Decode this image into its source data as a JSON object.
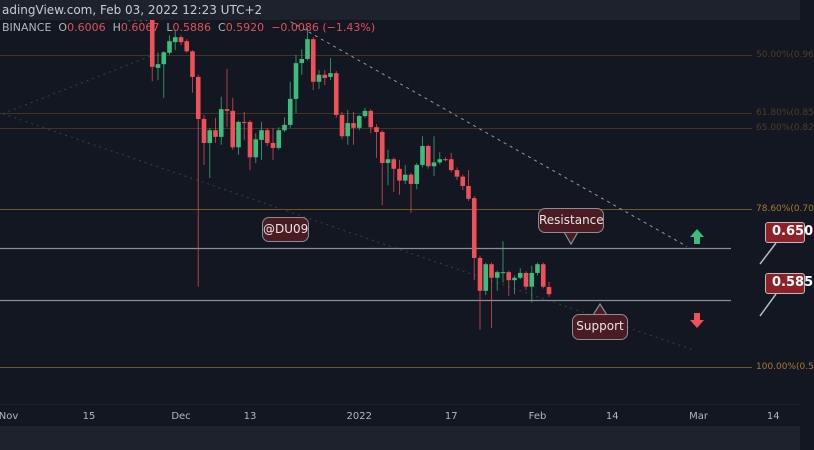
{
  "header": {
    "source_line": "adingView.com, Feb 03, 2022 12:23 UTC+2",
    "exchange": "BINANCE",
    "o_label": "O",
    "o_value": "0.6006",
    "h_label": "H",
    "h_value": "0.6067",
    "l_label": "L",
    "l_value": "0.5886",
    "c_label": "C",
    "c_value": "0.5920",
    "change": "−0.0086 (−1.43%)"
  },
  "annotations": {
    "watermark": "@DU09",
    "resistance_label": "Resistance",
    "support_label": "Support",
    "resistance_price": "0.650",
    "support_price": "0.585"
  },
  "colors": {
    "background": "#131722",
    "up": "#3dbd7d",
    "down": "#f0505a",
    "fib": "#7a5a24",
    "level": "#8a8d96",
    "label_fill": "#4a1c22",
    "price_box": "#8e2027"
  },
  "chart_data": {
    "type": "candlestick",
    "title": "",
    "y_scale": "log",
    "grid": false,
    "x_ticks": [
      {
        "label": "Nov",
        "date": "2021-11-01"
      },
      {
        "label": "15",
        "date": "2021-11-15"
      },
      {
        "label": "Dec",
        "date": "2021-12-01"
      },
      {
        "label": "13",
        "date": "2021-12-13"
      },
      {
        "label": "2022",
        "date": "2022-01-01"
      },
      {
        "label": "17",
        "date": "2022-01-17"
      },
      {
        "label": "Feb",
        "date": "2022-02-01"
      },
      {
        "label": "14",
        "date": "2022-02-14"
      },
      {
        "label": "Mar",
        "date": "2022-03-01"
      },
      {
        "label": "14",
        "date": "2022-03-14"
      }
    ],
    "fib_levels": [
      {
        "label": "50.00%(0.96",
        "price": 0.961,
        "strong": false
      },
      {
        "label": "61.80%(0.85",
        "price": 0.855,
        "strong": false
      },
      {
        "label": "65.00%(0.82",
        "price": 0.829,
        "strong": false
      },
      {
        "label": "78.60%(0.70",
        "price": 0.703,
        "strong": true
      },
      {
        "label": "100.00%(0.5",
        "price": 0.511,
        "strong": true
      }
    ],
    "horizontal_levels": [
      {
        "name": "resistance",
        "price": 0.65
      },
      {
        "name": "support",
        "price": 0.585
      }
    ],
    "trendlines": [
      {
        "from": [
          "2021-12-19",
          1.035
        ],
        "to": [
          "2022-02-27",
          0.652
        ],
        "style": "dashed"
      },
      {
        "from": [
          "2021-10-31",
          0.853
        ],
        "to": [
          "2021-11-26",
          0.96
        ],
        "style": "faint"
      },
      {
        "from": [
          "2021-10-31",
          0.853
        ],
        "to": [
          "2022-02-28",
          0.529
        ],
        "style": "faint"
      }
    ],
    "start_date": "2021-11-22",
    "candles_ohlc": [
      [
        1.031,
        1.04,
        1.028,
        1.035
      ],
      [
        1.035,
        1.04,
        1.029,
        1.031
      ],
      [
        1.031,
        1.038,
        1.028,
        1.035
      ],
      [
        1.035,
        1.04,
        1.029,
        1.031
      ],
      [
        1.035,
        1.04,
        0.911,
        0.938
      ],
      [
        0.936,
        0.965,
        0.913,
        0.943
      ],
      [
        0.943,
        0.968,
        0.881,
        0.966
      ],
      [
        0.965,
        1.0,
        0.961,
        0.988
      ],
      [
        0.986,
        1.011,
        0.97,
        0.996
      ],
      [
        0.996,
        1.0,
        0.98,
        0.986
      ],
      [
        0.988,
        0.992,
        0.965,
        0.968
      ],
      [
        0.968,
        0.97,
        0.89,
        0.919
      ],
      [
        0.919,
        0.923,
        0.601,
        0.844
      ],
      [
        0.844,
        0.851,
        0.769,
        0.804
      ],
      [
        0.804,
        0.829,
        0.749,
        0.825
      ],
      [
        0.825,
        0.846,
        0.804,
        0.814
      ],
      [
        0.814,
        0.883,
        0.801,
        0.861
      ],
      [
        0.861,
        0.934,
        0.83,
        0.858
      ],
      [
        0.858,
        0.881,
        0.793,
        0.797
      ],
      [
        0.797,
        0.841,
        0.785,
        0.839
      ],
      [
        0.839,
        0.856,
        0.809,
        0.838
      ],
      [
        0.839,
        0.842,
        0.761,
        0.781
      ],
      [
        0.781,
        0.82,
        0.772,
        0.81
      ],
      [
        0.809,
        0.839,
        0.777,
        0.825
      ],
      [
        0.825,
        0.829,
        0.799,
        0.804
      ],
      [
        0.804,
        0.829,
        0.777,
        0.796
      ],
      [
        0.796,
        0.83,
        0.793,
        0.825
      ],
      [
        0.825,
        0.847,
        0.822,
        0.834
      ],
      [
        0.834,
        0.91,
        0.829,
        0.879
      ],
      [
        0.879,
        0.961,
        0.854,
        0.945
      ],
      [
        0.945,
        0.972,
        0.923,
        0.953
      ],
      [
        0.953,
        1.015,
        0.95,
        0.992
      ],
      [
        0.992,
        0.996,
        0.895,
        0.91
      ],
      [
        0.91,
        0.932,
        0.897,
        0.923
      ],
      [
        0.923,
        0.932,
        0.904,
        0.917
      ],
      [
        0.919,
        0.955,
        0.913,
        0.926
      ],
      [
        0.926,
        0.93,
        0.846,
        0.851
      ],
      [
        0.851,
        0.856,
        0.81,
        0.815
      ],
      [
        0.815,
        0.859,
        0.801,
        0.837
      ],
      [
        0.837,
        0.856,
        0.801,
        0.829
      ],
      [
        0.829,
        0.851,
        0.825,
        0.849
      ],
      [
        0.849,
        0.863,
        0.846,
        0.858
      ],
      [
        0.858,
        0.861,
        0.82,
        0.83
      ],
      [
        0.83,
        0.835,
        0.78,
        0.822
      ],
      [
        0.822,
        0.825,
        0.709,
        0.772
      ],
      [
        0.772,
        0.793,
        0.738,
        0.778
      ],
      [
        0.778,
        0.781,
        0.728,
        0.763
      ],
      [
        0.763,
        0.777,
        0.724,
        0.745
      ],
      [
        0.745,
        0.769,
        0.74,
        0.754
      ],
      [
        0.754,
        0.757,
        0.698,
        0.74
      ],
      [
        0.74,
        0.772,
        0.732,
        0.769
      ],
      [
        0.769,
        0.815,
        0.765,
        0.799
      ],
      [
        0.799,
        0.801,
        0.763,
        0.767
      ],
      [
        0.767,
        0.815,
        0.752,
        0.773
      ],
      [
        0.773,
        0.789,
        0.77,
        0.778
      ],
      [
        0.778,
        0.781,
        0.775,
        0.777
      ],
      [
        0.778,
        0.788,
        0.758,
        0.761
      ],
      [
        0.761,
        0.765,
        0.746,
        0.751
      ],
      [
        0.751,
        0.754,
        0.731,
        0.737
      ],
      [
        0.737,
        0.761,
        0.715,
        0.718
      ],
      [
        0.719,
        0.722,
        0.609,
        0.637
      ],
      [
        0.637,
        0.64,
        0.551,
        0.596
      ],
      [
        0.596,
        0.631,
        0.591,
        0.629
      ],
      [
        0.629,
        0.631,
        0.553,
        0.612
      ],
      [
        0.612,
        0.621,
        0.596,
        0.619
      ],
      [
        0.618,
        0.659,
        0.606,
        0.619
      ],
      [
        0.619,
        0.621,
        0.59,
        0.609
      ],
      [
        0.609,
        0.615,
        0.592,
        0.612
      ],
      [
        0.612,
        0.624,
        0.61,
        0.618
      ],
      [
        0.618,
        0.62,
        0.597,
        0.601
      ],
      [
        0.601,
        0.627,
        0.582,
        0.618
      ],
      [
        0.618,
        0.631,
        0.615,
        0.629
      ],
      [
        0.629,
        0.631,
        0.599,
        0.601
      ],
      [
        0.6006,
        0.6067,
        0.5886,
        0.592
      ]
    ]
  }
}
